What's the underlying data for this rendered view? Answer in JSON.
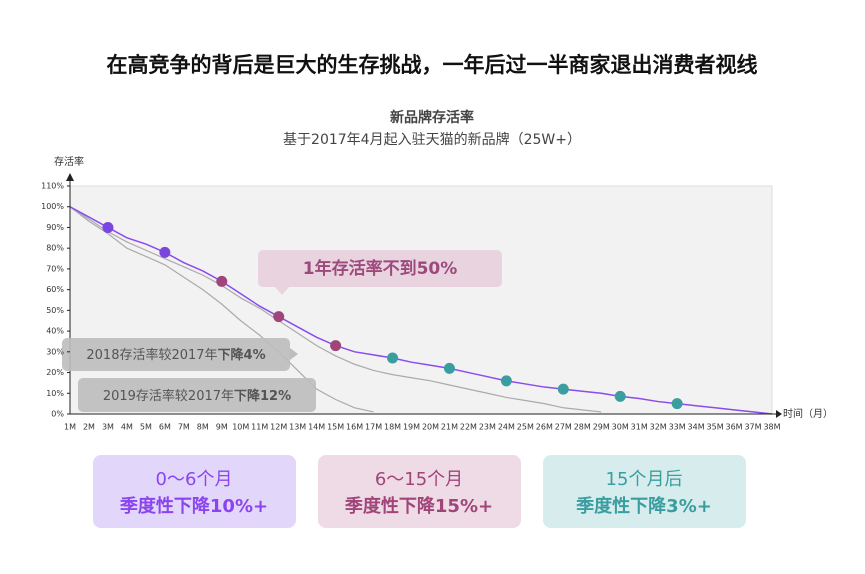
{
  "headline": "在高竞争的背后是巨大的生存挑战，一年后过一半商家退出消费者视线",
  "chart_data": {
    "type": "line",
    "title": "新品牌存活率",
    "subtitle": "基于2017年4月起入驻天猫的新品牌（25W+）",
    "y_label": "存活率",
    "x_label": "时间（月）",
    "categories": [
      "1M",
      "2M",
      "3M",
      "4M",
      "5M",
      "6M",
      "7M",
      "8M",
      "9M",
      "10M",
      "11M",
      "12M",
      "13M",
      "14M",
      "15M",
      "16M",
      "17M",
      "18M",
      "19M",
      "20M",
      "21M",
      "22M",
      "23M",
      "24M",
      "25M",
      "26M",
      "27M",
      "28M",
      "29M",
      "30M",
      "31M",
      "32M",
      "33M",
      "34M",
      "35M",
      "36M",
      "37M",
      "38M"
    ],
    "ylim": [
      0,
      110
    ],
    "yticks": [
      {
        "value": 0,
        "label": "0%"
      },
      {
        "value": 10,
        "label": "10%"
      },
      {
        "value": 20,
        "label": "20%"
      },
      {
        "value": 30,
        "label": "30%"
      },
      {
        "value": 40,
        "label": "40%"
      },
      {
        "value": 50,
        "label": "50%"
      },
      {
        "value": 60,
        "label": "60%"
      },
      {
        "value": 70,
        "label": "70%"
      },
      {
        "value": 80,
        "label": "80%"
      },
      {
        "value": 90,
        "label": "90%"
      },
      {
        "value": 100,
        "label": "100%"
      },
      {
        "value": 110,
        "label": "110%"
      }
    ],
    "series": [
      {
        "color": "#aaaaaa",
        "values": [
          100,
          93,
          87,
          80,
          76,
          72,
          66,
          60,
          53,
          45,
          38,
          30,
          21,
          12,
          7,
          3,
          1,
          null,
          null,
          null,
          null,
          null,
          null,
          null,
          null,
          null,
          null,
          null,
          null,
          null,
          null,
          null,
          null,
          null,
          null,
          null,
          null,
          null
        ]
      },
      {
        "color": "#aaaaaa",
        "values": [
          100,
          94,
          88,
          83,
          79,
          75,
          71,
          67,
          62,
          56,
          51,
          45,
          39,
          33,
          28,
          24,
          21,
          19,
          17.5,
          16,
          14,
          12,
          10,
          8,
          6.5,
          5,
          3,
          2,
          1,
          null,
          null,
          null,
          null,
          null,
          null,
          null,
          null,
          null
        ]
      },
      {
        "color": "#8a4bef",
        "values": [
          100,
          95,
          90,
          85,
          82,
          78,
          73,
          69,
          64,
          58,
          52,
          47,
          42,
          37,
          33,
          30,
          28.5,
          27,
          25,
          23.5,
          22,
          20,
          18,
          16,
          14.5,
          13,
          12,
          11,
          10,
          8.5,
          7.5,
          6,
          5,
          4,
          3,
          2,
          1,
          0
        ],
        "marker_colors": [
          null,
          null,
          "#7b45e0",
          null,
          null,
          "#7b45e0",
          null,
          null,
          "#a0457a",
          null,
          null,
          "#a0457a",
          null,
          null,
          "#a0457a",
          null,
          null,
          "#3a9ea0",
          null,
          null,
          "#3a9ea0",
          null,
          null,
          "#3a9ea0",
          null,
          null,
          "#3a9ea0",
          null,
          null,
          "#3a9ea0",
          null,
          null,
          "#3a9ea0",
          null,
          null,
          null,
          null,
          null
        ]
      }
    ],
    "annotations": [
      {
        "text": "1年存活率不到50%"
      },
      {
        "text": "2018存活率较2017年",
        "bold": "下降4%"
      },
      {
        "text": "2019存活率较2017年",
        "bold": "下降12%"
      }
    ]
  },
  "cards": [
    {
      "period": "0～6个月",
      "trend": "季度性下降10%+"
    },
    {
      "period": "6～15个月",
      "trend": "季度性下降15%+"
    },
    {
      "period": "15个月后",
      "trend": "季度性下降3%+"
    }
  ]
}
